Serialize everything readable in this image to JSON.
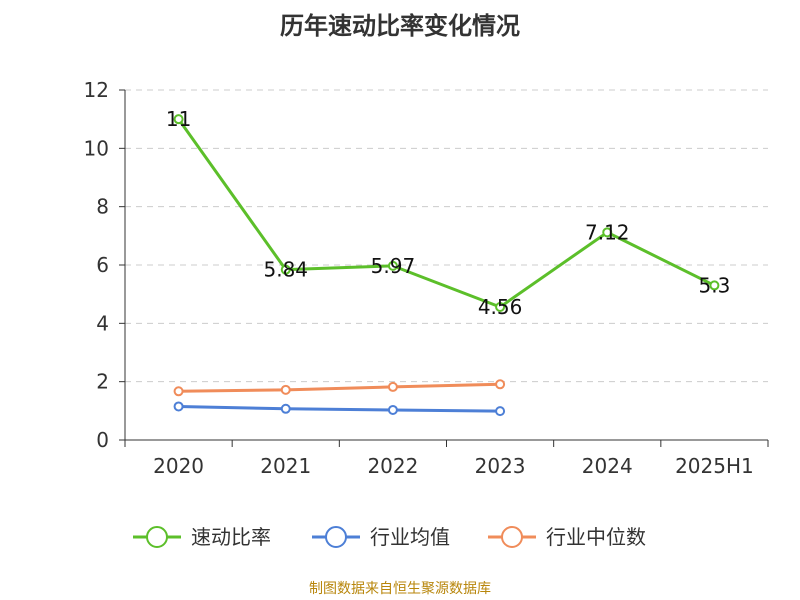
{
  "chart_data": {
    "type": "line",
    "title": "历年速动比率变化情况",
    "categories": [
      "2020",
      "2021",
      "2022",
      "2023",
      "2024",
      "2025H1"
    ],
    "ylim": [
      0,
      12
    ],
    "yticks": [
      0,
      2,
      4,
      6,
      8,
      10,
      12
    ],
    "grid": true,
    "legend_position": "bottom",
    "series": [
      {
        "name": "速动比率",
        "values": [
          11,
          5.84,
          5.97,
          4.56,
          7.12,
          5.3
        ],
        "labels": [
          "11",
          "5.84",
          "5.97",
          "4.56",
          "7.12",
          "5.3"
        ],
        "color": "#5cbf2a"
      },
      {
        "name": "行业均值",
        "values": [
          1.15,
          1.07,
          1.03,
          0.99,
          null,
          null
        ],
        "color": "#4d7fd6"
      },
      {
        "name": "行业中位数",
        "values": [
          1.67,
          1.72,
          1.82,
          1.91,
          null,
          null
        ],
        "color": "#f08c5a"
      }
    ]
  },
  "footer": {
    "source": "制图数据来自恒生聚源数据库"
  }
}
